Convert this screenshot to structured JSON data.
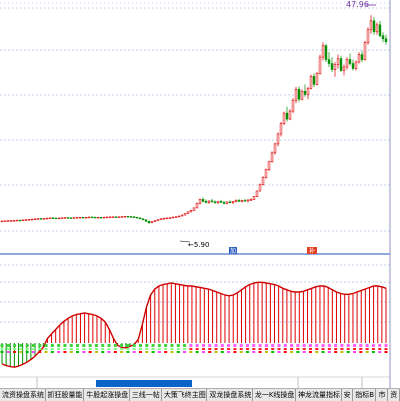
{
  "chart_data": {
    "type": "candlestick",
    "annotations": {
      "high_label": "47.96",
      "low_label": "5.90",
      "marker_a": "加",
      "marker_b": "补"
    },
    "price_ylim": [
      0,
      50
    ],
    "macd_ylim": [
      -6,
      10
    ],
    "volume_bar_count": 62,
    "candles": [
      [
        6.4,
        6.5,
        6.35,
        6.45
      ],
      [
        6.45,
        6.55,
        6.4,
        6.5
      ],
      [
        6.5,
        6.6,
        6.45,
        6.52
      ],
      [
        6.52,
        6.62,
        6.48,
        6.55
      ],
      [
        6.55,
        6.65,
        6.5,
        6.58
      ],
      [
        6.58,
        6.7,
        6.52,
        6.62
      ],
      [
        6.62,
        6.7,
        6.55,
        6.6
      ],
      [
        6.6,
        6.72,
        6.55,
        6.68
      ],
      [
        6.68,
        6.8,
        6.6,
        6.72
      ],
      [
        6.72,
        6.85,
        6.65,
        6.78
      ],
      [
        6.78,
        6.9,
        6.7,
        6.82
      ],
      [
        6.82,
        6.92,
        6.75,
        6.88
      ],
      [
        6.88,
        7.0,
        6.8,
        6.95
      ],
      [
        6.95,
        7.05,
        6.85,
        6.9
      ],
      [
        6.9,
        7.02,
        6.82,
        6.98
      ],
      [
        6.98,
        7.1,
        6.9,
        7.02
      ],
      [
        7.02,
        7.15,
        6.95,
        7.08
      ],
      [
        7.08,
        7.2,
        7.0,
        7.05
      ],
      [
        7.05,
        7.12,
        6.95,
        7.0
      ],
      [
        7.0,
        7.1,
        6.9,
        7.05
      ],
      [
        7.05,
        7.15,
        6.98,
        7.1
      ],
      [
        7.1,
        7.2,
        7.0,
        7.15
      ],
      [
        7.15,
        7.25,
        7.05,
        7.1
      ],
      [
        7.1,
        7.18,
        7.0,
        7.05
      ],
      [
        7.05,
        7.15,
        6.95,
        7.12
      ],
      [
        7.12,
        7.22,
        7.05,
        7.18
      ],
      [
        7.18,
        7.28,
        7.1,
        7.2
      ],
      [
        7.2,
        7.3,
        7.1,
        7.15
      ],
      [
        7.15,
        7.25,
        7.05,
        7.2
      ],
      [
        7.2,
        7.3,
        7.12,
        7.25
      ],
      [
        7.25,
        7.35,
        7.15,
        7.22
      ],
      [
        7.22,
        7.3,
        7.1,
        7.15
      ],
      [
        7.15,
        7.25,
        7.05,
        7.2
      ],
      [
        7.2,
        7.28,
        7.1,
        7.18
      ],
      [
        7.18,
        7.26,
        7.08,
        7.22
      ],
      [
        7.22,
        7.3,
        7.12,
        7.25
      ],
      [
        7.25,
        7.35,
        7.15,
        7.28
      ],
      [
        7.28,
        7.38,
        7.2,
        7.3
      ],
      [
        7.3,
        7.4,
        7.2,
        7.25
      ],
      [
        7.25,
        7.35,
        7.15,
        7.3
      ],
      [
        7.3,
        7.4,
        7.2,
        7.35
      ],
      [
        7.35,
        7.45,
        7.25,
        7.4
      ],
      [
        7.4,
        7.5,
        7.3,
        7.35
      ],
      [
        7.35,
        7.45,
        7.2,
        7.3
      ],
      [
        7.3,
        7.4,
        7.1,
        7.2
      ],
      [
        7.2,
        7.3,
        7.0,
        7.1
      ],
      [
        7.1,
        7.15,
        6.8,
        6.9
      ],
      [
        6.9,
        7.0,
        6.6,
        6.7
      ],
      [
        6.7,
        6.8,
        6.3,
        6.4
      ],
      [
        6.4,
        6.5,
        5.9,
        6.1
      ],
      [
        6.1,
        6.4,
        6.0,
        6.35
      ],
      [
        6.35,
        6.6,
        6.3,
        6.55
      ],
      [
        6.55,
        6.8,
        6.5,
        6.75
      ],
      [
        6.75,
        6.95,
        6.65,
        6.9
      ],
      [
        6.9,
        7.1,
        6.8,
        7.0
      ],
      [
        7.0,
        7.15,
        6.9,
        7.05
      ],
      [
        7.05,
        7.2,
        6.95,
        7.1
      ],
      [
        7.1,
        7.3,
        7.0,
        7.25
      ],
      [
        7.25,
        7.4,
        7.15,
        7.3
      ],
      [
        7.3,
        7.5,
        7.2,
        7.45
      ],
      [
        7.45,
        7.7,
        7.4,
        7.65
      ],
      [
        7.65,
        8.0,
        7.6,
        7.95
      ],
      [
        7.95,
        8.4,
        7.9,
        8.3
      ],
      [
        8.3,
        8.7,
        8.2,
        8.6
      ],
      [
        8.6,
        9.2,
        8.5,
        9.1
      ],
      [
        9.1,
        10.2,
        9.0,
        10.0
      ],
      [
        10.0,
        11.0,
        9.8,
        10.8
      ],
      [
        10.8,
        11.2,
        10.2,
        10.4
      ],
      [
        10.4,
        10.8,
        10.0,
        10.2
      ],
      [
        10.2,
        10.6,
        9.9,
        10.5
      ],
      [
        10.5,
        10.9,
        10.2,
        10.3
      ],
      [
        10.3,
        10.6,
        10.0,
        10.1
      ],
      [
        10.1,
        10.5,
        9.9,
        10.4
      ],
      [
        10.4,
        10.7,
        10.1,
        10.2
      ],
      [
        10.2,
        10.5,
        9.8,
        10.0
      ],
      [
        10.0,
        10.4,
        9.8,
        10.3
      ],
      [
        10.3,
        10.6,
        10.1,
        10.2
      ],
      [
        10.2,
        10.5,
        9.9,
        10.4
      ],
      [
        10.4,
        10.8,
        10.2,
        10.6
      ],
      [
        10.6,
        10.9,
        10.3,
        10.4
      ],
      [
        10.4,
        10.7,
        10.2,
        10.6
      ],
      [
        10.6,
        10.9,
        10.4,
        10.5
      ],
      [
        10.5,
        10.8,
        10.2,
        10.7
      ],
      [
        10.7,
        11.0,
        10.5,
        10.8
      ],
      [
        10.8,
        11.5,
        10.7,
        11.4
      ],
      [
        11.4,
        12.6,
        11.3,
        12.5
      ],
      [
        12.5,
        14.0,
        12.4,
        13.8
      ],
      [
        13.8,
        15.5,
        13.6,
        15.2
      ],
      [
        15.2,
        17.0,
        15.0,
        16.8
      ],
      [
        16.8,
        18.6,
        16.5,
        18.4
      ],
      [
        18.4,
        20.5,
        18.2,
        20.2
      ],
      [
        20.2,
        22.2,
        19.8,
        22.0
      ],
      [
        22.0,
        24.3,
        21.5,
        24.0
      ],
      [
        24.0,
        26.4,
        23.5,
        26.1
      ],
      [
        26.1,
        28.5,
        25.8,
        28.2
      ],
      [
        28.2,
        29.5,
        26.5,
        27.0
      ],
      [
        27.0,
        29.0,
        26.8,
        28.6
      ],
      [
        28.6,
        31.2,
        28.2,
        30.8
      ],
      [
        30.8,
        33.5,
        30.2,
        33.0
      ],
      [
        33.0,
        33.6,
        30.5,
        31.0
      ],
      [
        31.0,
        33.0,
        30.8,
        32.6
      ],
      [
        32.6,
        34.0,
        31.5,
        32.0
      ],
      [
        32.0,
        33.5,
        31.0,
        33.2
      ],
      [
        33.2,
        36.0,
        33.0,
        35.6
      ],
      [
        35.6,
        36.2,
        33.5,
        34.0
      ],
      [
        34.0,
        36.5,
        33.8,
        36.2
      ],
      [
        36.2,
        40.0,
        36.0,
        39.5
      ],
      [
        39.5,
        42.5,
        38.8,
        41.8
      ],
      [
        41.8,
        42.2,
        38.5,
        39.0
      ],
      [
        39.0,
        40.5,
        37.5,
        38.2
      ],
      [
        38.2,
        39.5,
        36.5,
        37.0
      ],
      [
        37.0,
        38.5,
        35.5,
        38.0
      ],
      [
        38.0,
        40.0,
        37.2,
        39.2
      ],
      [
        39.2,
        39.8,
        36.5,
        36.8
      ],
      [
        36.8,
        38.0,
        35.8,
        37.5
      ],
      [
        37.5,
        39.5,
        37.0,
        39.0
      ],
      [
        39.0,
        40.2,
        37.8,
        38.2
      ],
      [
        38.2,
        39.0,
        36.8,
        37.2
      ],
      [
        37.2,
        38.8,
        36.8,
        38.5
      ],
      [
        38.5,
        40.5,
        38.2,
        40.0
      ],
      [
        40.0,
        40.8,
        38.5,
        39.0
      ],
      [
        39.0,
        42.8,
        38.8,
        42.4
      ],
      [
        42.4,
        45.5,
        42.0,
        45.0
      ],
      [
        45.0,
        47.96,
        44.2,
        46.8
      ],
      [
        46.8,
        47.5,
        44.0,
        44.6
      ],
      [
        44.6,
        46.5,
        44.0,
        46.0
      ],
      [
        46.0,
        46.8,
        43.5,
        43.8
      ],
      [
        43.8,
        44.5,
        42.5,
        43.2
      ],
      [
        43.2,
        44.0,
        42.0,
        42.6
      ]
    ],
    "macd": [
      -3.8,
      -4.1,
      -4.3,
      -4.4,
      -4.2,
      -3.9,
      -3.5,
      -3.0,
      -2.4,
      -1.6,
      -0.8,
      0.6,
      1.2,
      1.8,
      2.4,
      2.9,
      3.3,
      3.6,
      3.8,
      3.9,
      4.0,
      3.9,
      3.8,
      3.6,
      3.3,
      2.8,
      1.8,
      0.6,
      -0.4,
      -0.8,
      -0.9,
      -0.6,
      -0.3,
      0.5,
      2.5,
      4.8,
      6.4,
      7.2,
      7.6,
      7.8,
      7.9,
      8.0,
      7.9,
      7.8,
      7.7,
      7.6,
      7.6,
      7.5,
      7.4,
      7.3,
      7.2,
      7.0,
      6.8,
      6.6,
      6.4,
      6.3,
      6.4,
      6.7,
      7.1,
      7.5,
      7.8,
      8.0,
      8.1,
      8.1,
      8.0,
      7.9,
      7.8,
      7.6,
      7.3,
      7.1,
      6.9,
      6.8,
      6.8,
      6.9,
      7.1,
      7.3,
      7.5,
      7.6,
      7.6,
      7.4,
      7.1,
      6.8,
      6.6,
      6.5,
      6.5,
      6.6,
      6.8,
      7.0,
      7.2,
      7.4,
      7.6,
      7.6,
      7.5,
      7.3
    ]
  },
  "tabs": [
    "流资操盘系统",
    "抓狂股量能",
    "牛股起涨操盘",
    "三线一帖",
    "大策飞终主图",
    "双龙操盘系统",
    "龙一K线操盘",
    "神龙流量指标",
    "安",
    "指标B",
    "市",
    "资"
  ],
  "colors": {
    "up": "#e00000",
    "down": "#009000",
    "macd_line": "#d00000",
    "accent_blue": "#0a64c8",
    "label_purple": "#7030a0"
  }
}
